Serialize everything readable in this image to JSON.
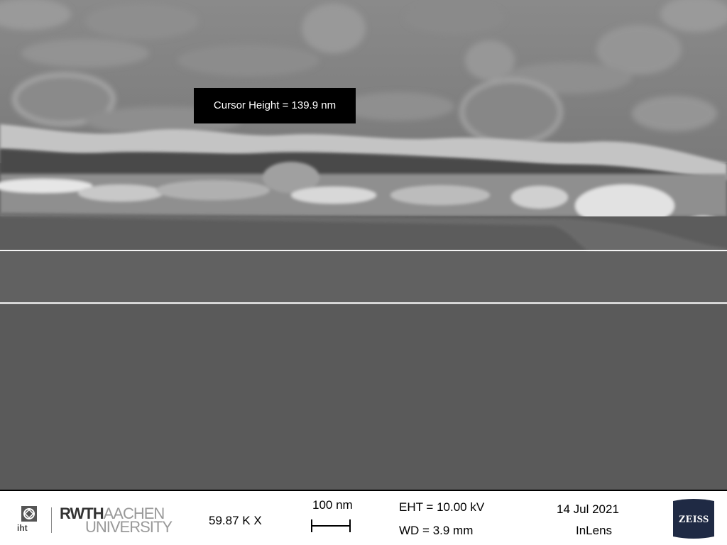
{
  "measurement": {
    "cursor_label": "Cursor Height = 139.9 nm"
  },
  "info_bar": {
    "logo": {
      "institute_text": "iht",
      "university_bold": "RWTH",
      "university_light": "AACHEN",
      "university_line2": "UNIVERSITY"
    },
    "magnification": "59.87 K X",
    "scale_bar_label": "100 nm",
    "eht": "EHT = 10.00 kV",
    "wd": "WD =  3.9 mm",
    "date": "14 Jul 2021",
    "detector": "InLens",
    "brand_logo": "ZEISS"
  },
  "colors": {
    "substrate": "#5c5c5c",
    "cursor_line": "#f4f4f4",
    "label_bg": "#000000",
    "info_bar_bg": "#ffffff"
  }
}
